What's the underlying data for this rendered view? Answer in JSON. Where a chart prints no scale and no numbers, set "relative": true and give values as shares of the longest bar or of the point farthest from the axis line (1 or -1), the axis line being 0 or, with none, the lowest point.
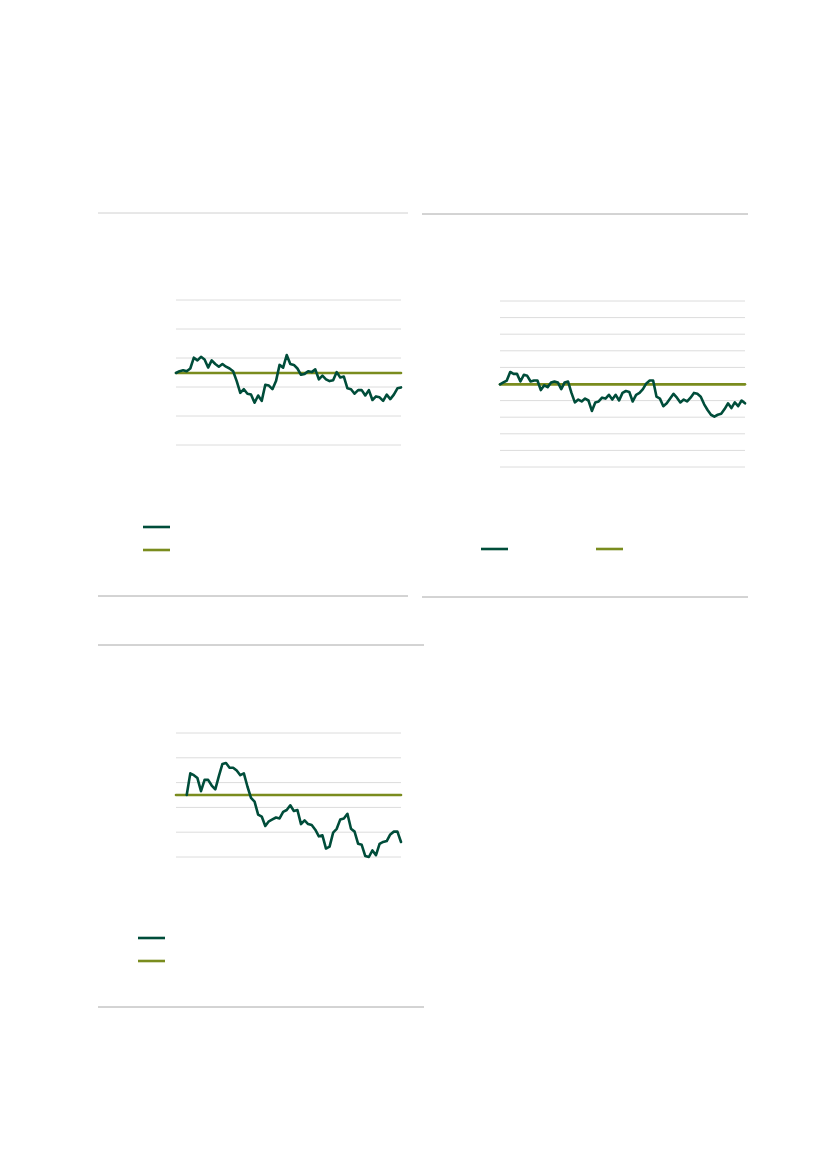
{
  "chart_data": [
    {
      "type": "line",
      "relative": true,
      "grid": true,
      "categories": [
        null,
        null,
        null,
        null,
        null,
        null,
        null,
        null,
        null,
        null,
        null,
        null,
        null,
        null,
        null,
        null,
        null,
        null,
        null,
        null,
        null,
        null,
        null,
        null,
        null,
        null,
        null,
        null,
        null,
        null,
        null,
        null,
        null,
        null,
        null,
        null,
        null,
        null,
        null,
        null,
        null,
        null,
        null,
        null,
        null,
        null,
        null,
        null,
        null,
        null,
        null,
        null,
        null,
        null,
        null,
        null,
        null,
        null,
        null,
        null,
        null,
        null,
        null,
        null
      ],
      "series": [
        {
          "color": "#004d3a",
          "values": [
            0.8,
            0.82,
            0.83,
            0.82,
            0.85,
            0.97,
            0.94,
            0.98,
            0.95,
            0.86,
            0.94,
            0.9,
            0.87,
            0.9,
            0.87,
            0.85,
            0.82,
            0.71,
            0.58,
            0.62,
            0.57,
            0.56,
            0.47,
            0.55,
            0.49,
            0.67,
            0.66,
            0.62,
            0.71,
            0.89,
            0.86,
            1,
            0.9,
            0.89,
            0.85,
            0.78,
            0.79,
            0.82,
            0.81,
            0.84,
            0.73,
            0.77,
            0.73,
            0.71,
            0.72,
            0.81,
            0.75,
            0.76,
            0.63,
            0.62,
            0.57,
            0.61,
            0.61,
            0.55,
            0.61,
            0.5,
            0.54,
            0.53,
            0.49,
            0.56,
            0.51,
            0.56,
            0.63,
            0.64
          ]
        },
        {
          "color": "#7a8c1e",
          "values": [
            0.8,
            0.8,
            0.8,
            0.8,
            0.8,
            0.8,
            0.8,
            0.8,
            0.8,
            0.8,
            0.8,
            0.8,
            0.8,
            0.8,
            0.8,
            0.8,
            0.8,
            0.8,
            0.8,
            0.8,
            0.8,
            0.8,
            0.8,
            0.8,
            0.8,
            0.8,
            0.8,
            0.8,
            0.8,
            0.8,
            0.8,
            0.8,
            0.8,
            0.8,
            0.8,
            0.8,
            0.8,
            0.8,
            0.8,
            0.8,
            0.8,
            0.8,
            0.8,
            0.8,
            0.8,
            0.8,
            0.8,
            0.8,
            0.8,
            0.8,
            0.8,
            0.8,
            0.8,
            0.8,
            0.8,
            0.8,
            0.8,
            0.8,
            0.8,
            0.8,
            0.8,
            0.8,
            0.8,
            0.8
          ]
        }
      ]
    },
    {
      "type": "line",
      "relative": true,
      "grid": true,
      "categories": [
        null,
        null,
        null,
        null,
        null,
        null,
        null,
        null,
        null,
        null,
        null,
        null,
        null,
        null,
        null,
        null,
        null,
        null,
        null,
        null,
        null,
        null,
        null,
        null,
        null,
        null,
        null,
        null,
        null,
        null,
        null,
        null,
        null,
        null,
        null,
        null,
        null,
        null,
        null,
        null,
        null,
        null,
        null,
        null,
        null,
        null,
        null,
        null,
        null,
        null,
        null,
        null,
        null,
        null,
        null,
        null,
        null,
        null,
        null,
        null,
        null,
        null,
        null,
        null,
        null,
        null,
        null,
        null,
        null,
        null,
        null,
        null,
        null
      ],
      "series": [
        {
          "color": "#004d3a",
          "values": [
            0.87,
            0.89,
            0.91,
            1,
            0.98,
            0.98,
            0.9,
            0.97,
            0.96,
            0.9,
            0.91,
            0.91,
            0.81,
            0.86,
            0.84,
            0.89,
            0.9,
            0.89,
            0.82,
            0.89,
            0.9,
            0.78,
            0.68,
            0.71,
            0.69,
            0.72,
            0.7,
            0.59,
            0.68,
            0.69,
            0.73,
            0.72,
            0.76,
            0.71,
            0.76,
            0.7,
            0.78,
            0.8,
            0.79,
            0.69,
            0.76,
            0.78,
            0.82,
            0.88,
            0.91,
            0.91,
            0.74,
            0.72,
            0.64,
            0.67,
            0.72,
            0.77,
            0.73,
            0.68,
            0.71,
            0.69,
            0.73,
            0.78,
            0.77,
            0.74,
            0.66,
            0.6,
            0.55,
            0.53,
            0.55,
            0.56,
            0.61,
            0.67,
            0.62,
            0.68,
            0.64,
            0.7,
            0.67
          ]
        },
        {
          "color": "#7a8c1e",
          "values": [
            0.87,
            0.87,
            0.87,
            0.87,
            0.87,
            0.87,
            0.87,
            0.87,
            0.87,
            0.87,
            0.87,
            0.87,
            0.87,
            0.87,
            0.87,
            0.87,
            0.87,
            0.87,
            0.87,
            0.87,
            0.87,
            0.87,
            0.87,
            0.87,
            0.87,
            0.87,
            0.87,
            0.87,
            0.87,
            0.87,
            0.87,
            0.87,
            0.87,
            0.87,
            0.87,
            0.87,
            0.87,
            0.87,
            0.87,
            0.87,
            0.87,
            0.87,
            0.87,
            0.87,
            0.87,
            0.87,
            0.87,
            0.87,
            0.87,
            0.87,
            0.87,
            0.87,
            0.87,
            0.87,
            0.87,
            0.87,
            0.87,
            0.87,
            0.87,
            0.87,
            0.87,
            0.87,
            0.87,
            0.87,
            0.87,
            0.87,
            0.87,
            0.87,
            0.87,
            0.87,
            0.87,
            0.87,
            0.87
          ]
        }
      ]
    },
    {
      "type": "line",
      "relative": true,
      "grid": true,
      "categories": [
        null,
        null,
        null,
        null,
        null,
        null,
        null,
        null,
        null,
        null,
        null,
        null,
        null,
        null,
        null,
        null,
        null,
        null,
        null,
        null,
        null,
        null,
        null,
        null,
        null,
        null,
        null,
        null,
        null,
        null,
        null,
        null,
        null,
        null,
        null,
        null,
        null,
        null,
        null,
        null,
        null,
        null,
        null,
        null,
        null,
        null,
        null,
        null,
        null,
        null,
        null,
        null,
        null,
        null,
        null,
        null,
        null,
        null,
        null,
        null,
        null,
        null,
        null,
        null
      ],
      "series": [
        {
          "color": "#004d3a",
          "values": [
            null,
            null,
            null,
            0.66,
            0.89,
            0.87,
            0.84,
            0.7,
            0.82,
            0.82,
            0.76,
            0.72,
            0.86,
            0.99,
            1,
            0.95,
            0.95,
            0.92,
            0.87,
            0.89,
            0.75,
            0.63,
            0.59,
            0.45,
            0.43,
            0.33,
            0.38,
            0.4,
            0.42,
            0.41,
            0.48,
            0.5,
            0.55,
            0.49,
            0.5,
            0.35,
            0.39,
            0.35,
            0.34,
            0.29,
            0.22,
            0.23,
            0.09,
            0.11,
            0.26,
            0.3,
            0.4,
            0.41,
            0.46,
            0.3,
            0.27,
            0.14,
            0.13,
            0.01,
            0,
            0.07,
            0.02,
            0.14,
            0.16,
            0.17,
            0.24,
            0.27,
            0.27,
            0.16
          ]
        },
        {
          "color": "#7a8c1e",
          "values": [
            0.66,
            0.66,
            0.66,
            0.66,
            0.66,
            0.66,
            0.66,
            0.66,
            0.66,
            0.66,
            0.66,
            0.66,
            0.66,
            0.66,
            0.66,
            0.66,
            0.66,
            0.66,
            0.66,
            0.66,
            0.66,
            0.66,
            0.66,
            0.66,
            0.66,
            0.66,
            0.66,
            0.66,
            0.66,
            0.66,
            0.66,
            0.66,
            0.66,
            0.66,
            0.66,
            0.66,
            0.66,
            0.66,
            0.66,
            0.66,
            0.66,
            0.66,
            0.66,
            0.66,
            0.66,
            0.66,
            0.66,
            0.66,
            0.66,
            0.66,
            0.66,
            0.66,
            0.66,
            0.66,
            0.66,
            0.66,
            0.66,
            0.66,
            0.66,
            0.66,
            0.66,
            0.66,
            0.66,
            0.66
          ]
        }
      ]
    }
  ]
}
